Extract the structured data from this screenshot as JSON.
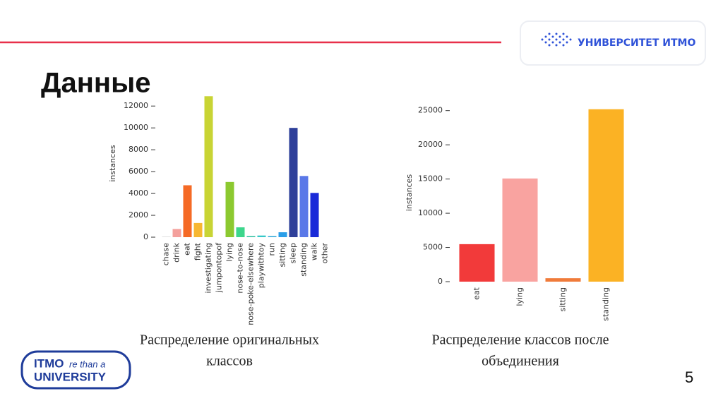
{
  "slide": {
    "title": "Данные",
    "logo_top": "УНИВЕРСИТЕТ ИТМО",
    "logo_bottom": [
      "ITMO",
      "re than a",
      "UNIVERSITY"
    ],
    "page_number": "5",
    "captions": [
      [
        "Распределение оригинальных",
        "классов"
      ],
      [
        "Распределение классов после",
        "объединения"
      ]
    ]
  },
  "chart_data": [
    {
      "type": "bar",
      "ylabel": "instances",
      "categories": [
        "chase",
        "drink",
        "eat",
        "fight",
        "investigating",
        "jumpontopof",
        "lying",
        "nose-to-nose",
        "nose-poke-elsewhere",
        "playwithtoy",
        "run",
        "sitting",
        "sleep",
        "standing",
        "walk",
        "other"
      ],
      "values": [
        20,
        750,
        4750,
        1300,
        12900,
        0,
        5050,
        900,
        100,
        150,
        100,
        450,
        10000,
        5600,
        4050,
        0
      ],
      "colors": [
        "#9a9a9a",
        "#f4a09c",
        "#f56a25",
        "#f7b731",
        "#c8d434",
        "#a6d030",
        "#8cc930",
        "#3dd68c",
        "#30c0a0",
        "#35c8c8",
        "#30a8d8",
        "#2a9ee8",
        "#2e3f9a",
        "#5a78e8",
        "#1a2ad8",
        "#4a3ad0"
      ],
      "ylim": [
        0,
        13500
      ],
      "yticks": [
        0,
        2000,
        4000,
        6000,
        8000,
        10000,
        12000
      ]
    },
    {
      "type": "bar",
      "ylabel": "instances",
      "categories": [
        "eat",
        "lying",
        "sitting",
        "standing"
      ],
      "values": [
        5480,
        15080,
        500,
        25200
      ],
      "colors": [
        "#f23a3a",
        "#f9a3a0",
        "#f07b3a",
        "#fbb224"
      ],
      "ylim": [
        0,
        26000
      ],
      "yticks": [
        0,
        5000,
        10000,
        15000,
        20000,
        25000
      ]
    }
  ]
}
